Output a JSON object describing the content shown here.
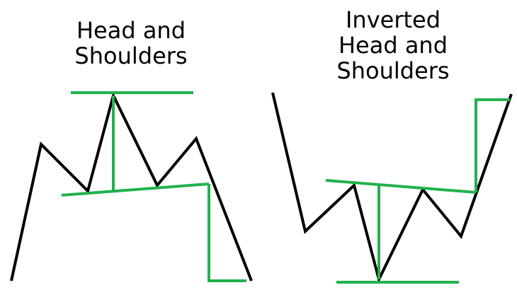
{
  "left_diagram": {
    "title_lines": [
      "Head and",
      "Shoulders"
    ]
  },
  "right_diagram": {
    "title_lines": [
      "Inverted",
      "Head and",
      "Shoulders"
    ]
  },
  "colors": {
    "price_line": "#000000",
    "guide_line": "#22b14c",
    "background": "#ffffff"
  }
}
